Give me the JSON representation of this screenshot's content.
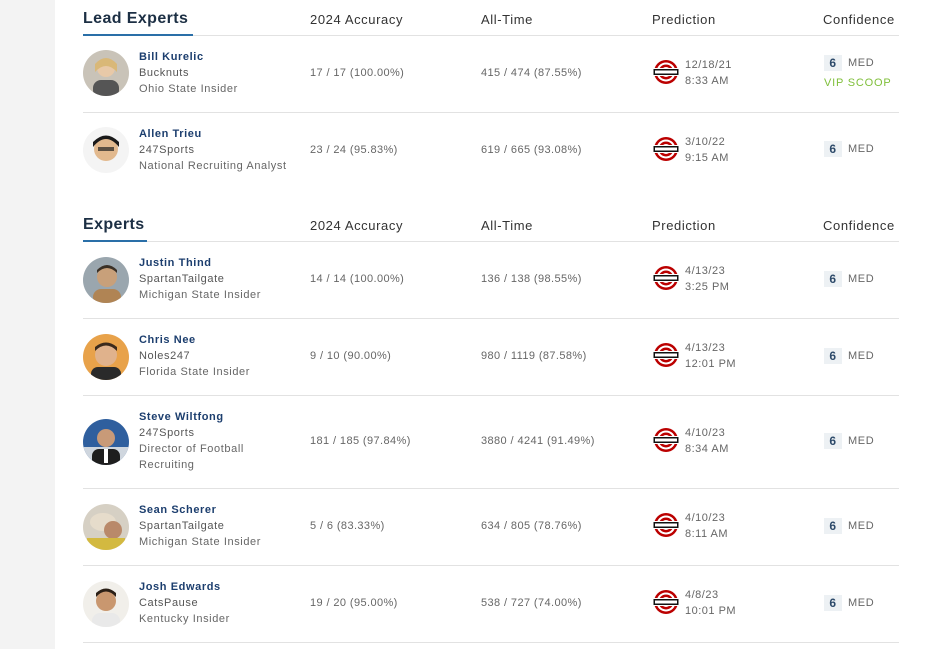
{
  "sections": [
    {
      "title": "Lead Experts",
      "columns": {
        "accuracy": "2024 Accuracy",
        "alltime": "All-Time",
        "prediction": "Prediction",
        "confidence": "Confidence"
      },
      "rows": [
        {
          "name": "Bill Kurelic",
          "org": "Bucknuts",
          "role": "Ohio State Insider",
          "accuracy": "17 / 17 (100.00%)",
          "alltime": "415 / 474 (87.55%)",
          "date": "12/18/21",
          "time": "8:33 AM",
          "confidence": "6",
          "level": "MED",
          "note": "VIP SCOOP"
        },
        {
          "name": "Allen Trieu",
          "org": "247Sports",
          "role": "National Recruiting Analyst",
          "accuracy": "23 / 24 (95.83%)",
          "alltime": "619 / 665 (93.08%)",
          "date": "3/10/22",
          "time": "9:15 AM",
          "confidence": "6",
          "level": "MED"
        }
      ]
    },
    {
      "title": "Experts",
      "columns": {
        "accuracy": "2024 Accuracy",
        "alltime": "All-Time",
        "prediction": "Prediction",
        "confidence": "Confidence"
      },
      "rows": [
        {
          "name": "Justin Thind",
          "org": "SpartanTailgate",
          "role": "Michigan State Insider",
          "accuracy": "14 / 14 (100.00%)",
          "alltime": "136 / 138 (98.55%)",
          "date": "4/13/23",
          "time": "3:25 PM",
          "confidence": "6",
          "level": "MED"
        },
        {
          "name": "Chris Nee",
          "org": "Noles247",
          "role": "Florida State Insider",
          "accuracy": "9 / 10 (90.00%)",
          "alltime": "980 / 1119 (87.58%)",
          "date": "4/13/23",
          "time": "12:01 PM",
          "confidence": "6",
          "level": "MED"
        },
        {
          "name": "Steve Wiltfong",
          "org": "247Sports",
          "role": "Director of Football",
          "role2": "Recruiting",
          "accuracy": "181 / 185 (97.84%)",
          "alltime": "3880 / 4241 (91.49%)",
          "date": "4/10/23",
          "time": "8:34 AM",
          "confidence": "6",
          "level": "MED"
        },
        {
          "name": "Sean Scherer",
          "org": "SpartanTailgate",
          "role": "Michigan State Insider",
          "accuracy": "5 / 6 (83.33%)",
          "alltime": "634 / 805 (78.76%)",
          "date": "4/10/23",
          "time": "8:11 AM",
          "confidence": "6",
          "level": "MED"
        },
        {
          "name": "Josh Edwards",
          "org": "CatsPause",
          "role": "Kentucky Insider",
          "accuracy": "19 / 20 (95.00%)",
          "alltime": "538 / 727 (74.00%)",
          "date": "4/8/23",
          "time": "10:01 PM",
          "confidence": "6",
          "level": "MED"
        }
      ]
    }
  ],
  "colors": {
    "name": "#1c3e6e",
    "accent_underline": "#2a6fa8",
    "vip": "#7fbf3a",
    "badge_bg": "#edf1f4",
    "ohio_state_red": "#bb0000"
  },
  "icons": {
    "team_logo": "ohio-state-logo-icon",
    "avatar": "expert-avatar"
  }
}
